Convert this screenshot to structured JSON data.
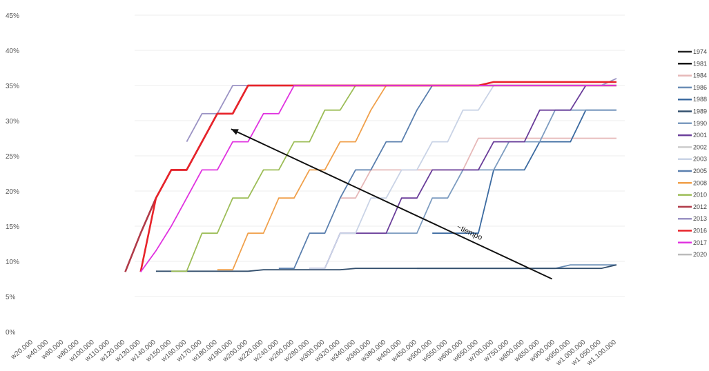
{
  "chart_data": {
    "type": "line",
    "title": "",
    "xlabel": "",
    "ylabel": "",
    "ylim": [
      0,
      45
    ],
    "yticks": [
      "0%",
      "5%",
      "10%",
      "15%",
      "20%",
      "25%",
      "30%",
      "35%",
      "40%",
      "45%"
    ],
    "categories": [
      "w20.000",
      "w40.000",
      "w60.000",
      "w80.000",
      "w100.000",
      "w110.000",
      "w120.000",
      "w130.000",
      "w140.000",
      "w150.000",
      "w160.000",
      "w170.000",
      "w180.000",
      "w190.000",
      "w200.000",
      "w220.000",
      "w240.000",
      "w260.000",
      "w280.000",
      "w300.000",
      "w320.000",
      "w340.000",
      "w360.000",
      "w380.000",
      "w400.000",
      "w450.000",
      "w500.000",
      "w550.000",
      "w600.000",
      "w650.000",
      "w700.000",
      "w750.000",
      "w800.000",
      "w850.000",
      "w900.000",
      "w950.000",
      "w1.000.000",
      "w1.050.000",
      "w1.100.000"
    ],
    "grid": true,
    "legend_position": "right",
    "annotation": {
      "text": "~tiempo",
      "from": [
        33.8,
        7.5
      ],
      "to": [
        12.9,
        28.8
      ]
    },
    "series": [
      {
        "name": "1974",
        "color": "#222222",
        "values": [
          null,
          null,
          null,
          null,
          null,
          null,
          null,
          null,
          null,
          null,
          null,
          null,
          null,
          null,
          null,
          null,
          null,
          null,
          null,
          null,
          null,
          null,
          null,
          null,
          null,
          null,
          null,
          null,
          null,
          null,
          null,
          null,
          null,
          null,
          null,
          null,
          null,
          null,
          null
        ]
      },
      {
        "name": "1981",
        "color": "#111111",
        "values": [
          null,
          null,
          null,
          null,
          null,
          null,
          null,
          null,
          null,
          null,
          null,
          null,
          null,
          null,
          null,
          null,
          null,
          null,
          null,
          null,
          null,
          null,
          null,
          null,
          null,
          null,
          null,
          null,
          null,
          null,
          null,
          null,
          null,
          null,
          null,
          null,
          null,
          null,
          null
        ]
      },
      {
        "name": "1984",
        "color": "#e6b8b8",
        "values": [
          null,
          null,
          null,
          null,
          null,
          null,
          null,
          null,
          null,
          null,
          null,
          null,
          null,
          null,
          null,
          null,
          null,
          null,
          null,
          null,
          19,
          19,
          23,
          23,
          23,
          23,
          23,
          23,
          23,
          27.5,
          27.5,
          27.5,
          27.5,
          27.5,
          27.5,
          27.5,
          27.5,
          27.5,
          27.5
        ]
      },
      {
        "name": "1986",
        "color": "#6a8db5",
        "values": [
          null,
          null,
          null,
          null,
          null,
          null,
          null,
          null,
          null,
          null,
          null,
          null,
          null,
          null,
          null,
          null,
          null,
          null,
          null,
          null,
          null,
          null,
          null,
          null,
          null,
          9,
          9,
          9,
          9,
          9,
          9,
          9,
          9,
          9,
          9,
          9.5,
          9.5,
          9.5,
          9.5
        ]
      },
      {
        "name": "1988",
        "color": "#3b6aa0",
        "values": [
          null,
          null,
          null,
          null,
          null,
          null,
          null,
          null,
          null,
          null,
          null,
          null,
          null,
          null,
          null,
          null,
          null,
          null,
          null,
          null,
          null,
          null,
          null,
          null,
          null,
          null,
          14,
          14,
          14,
          14,
          23,
          23,
          23,
          27,
          27,
          27,
          31.5,
          31.5,
          31.5
        ]
      },
      {
        "name": "1989",
        "color": "#34506e",
        "values": [
          null,
          null,
          null,
          null,
          null,
          null,
          null,
          null,
          8.6,
          8.6,
          8.6,
          8.6,
          8.6,
          8.6,
          8.6,
          8.8,
          8.8,
          8.8,
          8.8,
          8.8,
          8.8,
          9,
          9,
          9,
          9,
          9,
          9,
          9,
          9,
          9,
          9,
          9,
          9,
          9,
          9,
          9,
          9,
          9,
          9.5
        ]
      },
      {
        "name": "1990",
        "color": "#7d9cc0",
        "values": [
          null,
          null,
          null,
          null,
          null,
          null,
          null,
          null,
          null,
          null,
          null,
          null,
          null,
          null,
          null,
          null,
          null,
          null,
          null,
          null,
          null,
          null,
          null,
          14,
          14,
          14,
          19,
          19,
          23,
          23,
          23,
          27,
          27,
          27,
          31.5,
          31.5,
          31.5,
          31.5,
          31.5
        ]
      },
      {
        "name": "2001",
        "color": "#6a3d9a",
        "values": [
          null,
          null,
          null,
          null,
          null,
          null,
          null,
          null,
          null,
          null,
          null,
          null,
          null,
          null,
          null,
          null,
          null,
          null,
          9,
          9,
          14,
          14,
          14,
          14,
          19,
          19,
          23,
          23,
          23,
          23,
          27,
          27,
          27,
          31.5,
          31.5,
          31.5,
          35,
          35,
          35
        ]
      },
      {
        "name": "2002",
        "color": "#cccccc",
        "values": [
          null,
          null,
          null,
          null,
          null,
          null,
          null,
          null,
          null,
          null,
          null,
          null,
          null,
          null,
          null,
          null,
          null,
          null,
          null,
          null,
          null,
          null,
          null,
          null,
          null,
          null,
          null,
          null,
          null,
          null,
          null,
          null,
          null,
          null,
          null,
          null,
          null,
          null,
          null
        ]
      },
      {
        "name": "2003",
        "color": "#c9d3e6",
        "values": [
          null,
          null,
          null,
          null,
          null,
          null,
          null,
          null,
          null,
          null,
          null,
          null,
          null,
          null,
          null,
          null,
          null,
          null,
          9,
          9,
          14,
          14,
          19,
          19,
          23,
          23,
          27,
          27,
          31.5,
          31.5,
          35,
          35,
          35,
          35,
          35,
          35,
          35,
          35,
          35
        ]
      },
      {
        "name": "2005",
        "color": "#5a7fae",
        "values": [
          null,
          null,
          null,
          null,
          null,
          null,
          null,
          null,
          null,
          null,
          null,
          null,
          null,
          null,
          null,
          null,
          9,
          9,
          14,
          14,
          19,
          23,
          23,
          27,
          27,
          31.5,
          35,
          35,
          35,
          35,
          35,
          35,
          35,
          35,
          35,
          35,
          35,
          35,
          35
        ]
      },
      {
        "name": "2008",
        "color": "#f0a04b",
        "values": [
          null,
          null,
          null,
          null,
          null,
          null,
          null,
          null,
          null,
          null,
          null,
          null,
          8.8,
          8.8,
          14,
          14,
          19,
          19,
          23,
          23,
          27,
          27,
          31.5,
          35,
          35,
          35,
          35,
          35,
          35,
          35,
          35,
          35,
          35,
          35,
          35,
          35,
          35,
          35,
          35
        ]
      },
      {
        "name": "2010",
        "color": "#9cbd57",
        "values": [
          null,
          null,
          null,
          null,
          null,
          null,
          null,
          null,
          null,
          8.6,
          8.6,
          14,
          14,
          19,
          19,
          23,
          23,
          27,
          27,
          31.5,
          31.5,
          35,
          35,
          35,
          35,
          35,
          35,
          35,
          35,
          35,
          35,
          35,
          35,
          35,
          35,
          35,
          35,
          35,
          35
        ]
      },
      {
        "name": "2012",
        "color": "#b03a48",
        "values": [
          null,
          null,
          null,
          null,
          null,
          null,
          8.5,
          14,
          19,
          23,
          23,
          27,
          31,
          31,
          35,
          35,
          35,
          35,
          35,
          35,
          35,
          35,
          35,
          35,
          35,
          35,
          35,
          35,
          35,
          35,
          35,
          35,
          35,
          35,
          35,
          35,
          35,
          35,
          35
        ]
      },
      {
        "name": "2013",
        "color": "#9b93c4",
        "values": [
          null,
          null,
          null,
          null,
          null,
          null,
          null,
          null,
          null,
          null,
          27,
          31,
          31,
          35,
          35,
          35,
          35,
          35,
          35,
          35,
          35,
          35,
          35,
          35,
          35,
          35,
          35,
          35,
          35,
          35,
          35,
          35,
          35,
          35,
          35,
          35,
          35,
          35,
          36
        ]
      },
      {
        "name": "2016",
        "color": "#e8232a",
        "values": [
          null,
          null,
          null,
          null,
          null,
          null,
          null,
          8.5,
          19,
          23,
          23,
          27,
          31,
          31,
          35,
          35,
          35,
          35,
          35,
          35,
          35,
          35,
          35,
          35,
          35,
          35,
          35,
          35,
          35,
          35,
          35.5,
          35.5,
          35.5,
          35.5,
          35.5,
          35.5,
          35.5,
          35.5,
          35.5
        ]
      },
      {
        "name": "2017",
        "color": "#e033e0",
        "values": [
          null,
          null,
          null,
          null,
          null,
          null,
          null,
          8.5,
          11.5,
          15,
          19,
          23,
          23,
          27,
          27,
          31,
          31,
          35,
          35,
          35,
          35,
          35,
          35,
          35,
          35,
          35,
          35,
          35,
          35,
          35,
          35,
          35,
          35,
          35,
          35,
          35,
          35,
          35,
          35
        ]
      },
      {
        "name": "2020",
        "color": "#bbbbbb",
        "values": [
          null,
          null,
          null,
          null,
          null,
          null,
          null,
          null,
          null,
          null,
          null,
          null,
          null,
          null,
          null,
          null,
          null,
          null,
          null,
          null,
          null,
          null,
          null,
          null,
          null,
          null,
          null,
          null,
          null,
          null,
          null,
          null,
          null,
          null,
          null,
          null,
          null,
          null,
          null
        ]
      }
    ]
  }
}
